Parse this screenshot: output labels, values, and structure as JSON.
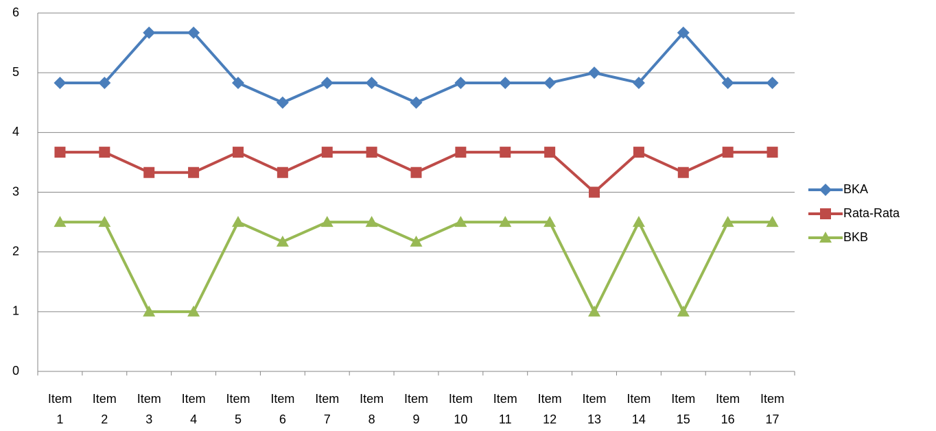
{
  "chart_data": {
    "type": "line",
    "categories": [
      "Item 1",
      "Item 2",
      "Item 3",
      "Item 4",
      "Item 5",
      "Item 6",
      "Item 7",
      "Item 8",
      "Item 9",
      "Item 10",
      "Item 11",
      "Item 12",
      "Item 13",
      "Item 14",
      "Item 15",
      "Item 16",
      "Item 17"
    ],
    "series": [
      {
        "name": "BKA",
        "color": "#4a7ebb",
        "marker": "diamond",
        "values": [
          4.83,
          4.83,
          5.67,
          5.67,
          4.83,
          4.5,
          4.83,
          4.83,
          4.5,
          4.83,
          4.83,
          4.83,
          5,
          4.83,
          5.67,
          4.83,
          4.83
        ]
      },
      {
        "name": "Rata-Rata",
        "color": "#be4b48",
        "marker": "square",
        "values": [
          3.67,
          3.67,
          3.33,
          3.33,
          3.67,
          3.33,
          3.67,
          3.67,
          3.33,
          3.67,
          3.67,
          3.67,
          3,
          3.67,
          3.33,
          3.67,
          3.67
        ]
      },
      {
        "name": "BKB",
        "color": "#98b954",
        "marker": "triangle",
        "values": [
          2.5,
          2.5,
          1,
          1,
          2.5,
          2.17,
          2.5,
          2.5,
          2.17,
          2.5,
          2.5,
          2.5,
          1,
          2.5,
          1,
          2.5,
          2.5
        ]
      }
    ],
    "ylim": [
      0,
      6
    ],
    "yticks": [
      0,
      1,
      2,
      3,
      4,
      5,
      6
    ],
    "grid": true,
    "legend": "right"
  }
}
